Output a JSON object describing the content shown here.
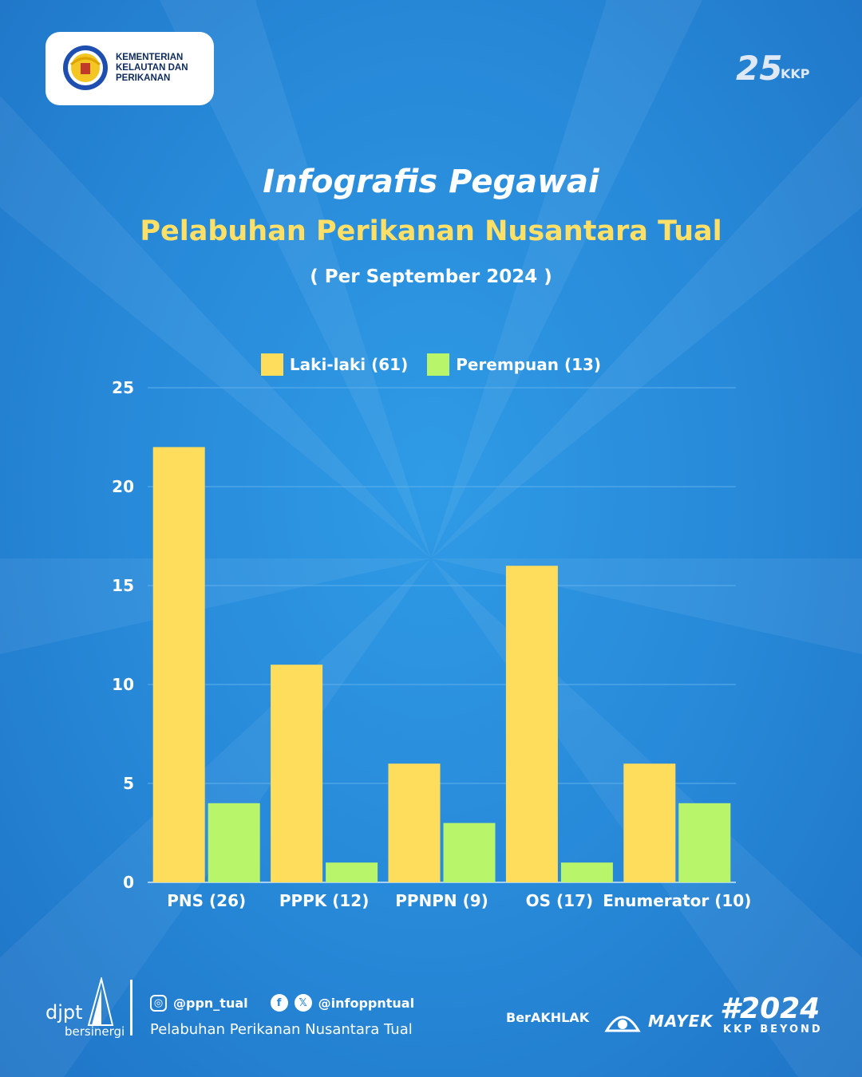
{
  "header": {
    "logo_text": "KEMENTERIAN\nKELAUTAN DAN\nPERIKANAN",
    "anniversary_logo_text": "KKP",
    "anniversary_number": "25"
  },
  "titles": {
    "title": "Infografis Pegawai",
    "subtitle": "Pelabuhan Perikanan Nusantara Tual",
    "period": "( Per September 2024 )"
  },
  "chart_data": {
    "type": "bar",
    "categories": [
      "PNS (26)",
      "PPPK (12)",
      "PPNPN (9)",
      "OS (17)",
      "Enumerator (10)"
    ],
    "series": [
      {
        "name": "Laki-laki (61)",
        "values": [
          22,
          11,
          6,
          16,
          6
        ],
        "color": "#ffdd5c"
      },
      {
        "name": "Perempuan (13)",
        "values": [
          4,
          1,
          3,
          1,
          4
        ],
        "color": "#b8f56a"
      }
    ],
    "ylim": [
      0,
      25
    ],
    "yticks": [
      "0",
      "5",
      "10",
      "15",
      "20",
      "25"
    ],
    "grid": true,
    "legend_position": "top-center"
  },
  "footer": {
    "djpt": "djpt",
    "djpt_tagline": "bersinergi",
    "instagram": "@ppn_tual",
    "facebook_x": "@infoppntual",
    "org_name": "Pelabuhan Perikanan Nusantara Tual",
    "berakhlak": "BerAKHLAK",
    "mayek": "MAYEK",
    "kkp2024": "#2024",
    "kkp_beyond": "KKP BEYOND"
  },
  "icons": {
    "instagram": "instagram-icon",
    "facebook": "facebook-icon",
    "x": "x-icon"
  }
}
